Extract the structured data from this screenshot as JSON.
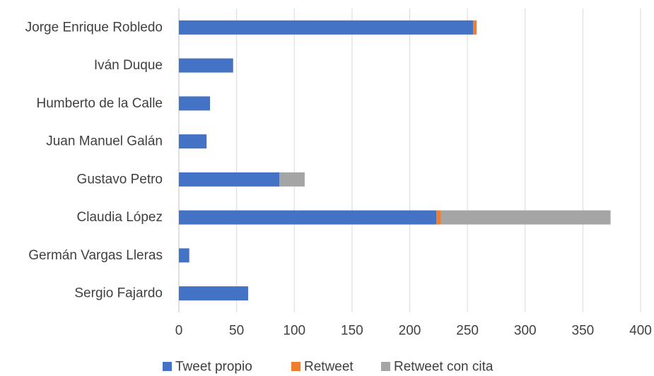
{
  "chart_data": {
    "type": "bar",
    "orientation": "horizontal",
    "stacked": true,
    "categories": [
      "Jorge Enrique Robledo",
      "Iván Duque",
      "Humberto de la Calle",
      "Juan Manuel Galán",
      "Gustavo Petro",
      "Claudia López",
      "Germán Vargas Lleras",
      "Sergio Fajardo"
    ],
    "series": [
      {
        "name": "Tweet propio",
        "color": "#4472C4",
        "values": [
          255,
          47,
          27,
          24,
          87,
          223,
          9,
          60
        ]
      },
      {
        "name": "Retweet",
        "color": "#ED7D31",
        "values": [
          3,
          0,
          0,
          0,
          0,
          4,
          0,
          0
        ]
      },
      {
        "name": "Retweet con cita",
        "color": "#A5A5A5",
        "values": [
          0,
          0,
          0,
          0,
          22,
          147,
          0,
          0
        ]
      }
    ],
    "xlim": [
      0,
      400
    ],
    "xticks": [
      0,
      50,
      100,
      150,
      200,
      250,
      300,
      350,
      400
    ],
    "grid": "vertical",
    "legend_position": "bottom"
  }
}
